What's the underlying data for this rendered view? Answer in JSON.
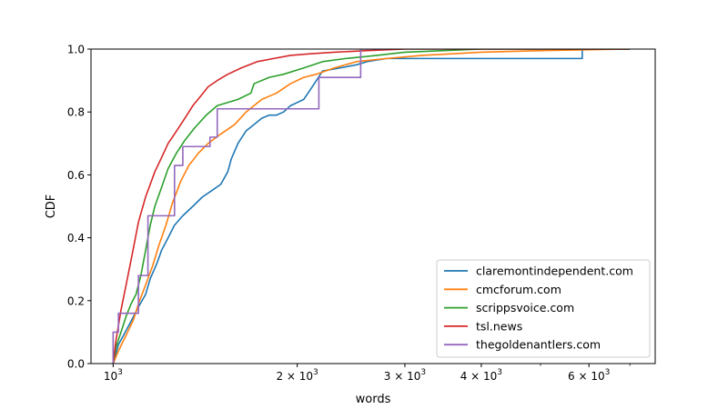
{
  "chart_data": {
    "type": "line",
    "subtype": "step-cdf",
    "xscale": "log",
    "xlabel": "words",
    "ylabel": "CDF",
    "xlim": [
      920,
      7700
    ],
    "ylim": [
      0.0,
      1.0
    ],
    "grid": false,
    "legend_position": "lower-right",
    "x_ticks": [
      {
        "value": 1000,
        "base": "10",
        "exp": "3"
      },
      {
        "value": 2000,
        "base": "2 × 10",
        "exp": "3"
      },
      {
        "value": 3000,
        "base": "3 × 10",
        "exp": "3"
      },
      {
        "value": 4000,
        "base": "4 × 10",
        "exp": "3"
      },
      {
        "value": 6000,
        "base": "6 × 10",
        "exp": "3"
      }
    ],
    "x_minor_ticks": [
      5000,
      7000
    ],
    "y_ticks": [
      "0.0",
      "0.2",
      "0.4",
      "0.6",
      "0.8",
      "1.0"
    ],
    "series": [
      {
        "name": "claremontindependent.com",
        "color": "#1f77b4",
        "points": [
          [
            1000,
            0.0
          ],
          [
            1010,
            0.03
          ],
          [
            1020,
            0.06
          ],
          [
            1040,
            0.09
          ],
          [
            1060,
            0.12
          ],
          [
            1080,
            0.15
          ],
          [
            1100,
            0.18
          ],
          [
            1130,
            0.22
          ],
          [
            1150,
            0.27
          ],
          [
            1180,
            0.32
          ],
          [
            1200,
            0.36
          ],
          [
            1230,
            0.4
          ],
          [
            1260,
            0.44
          ],
          [
            1300,
            0.47
          ],
          [
            1350,
            0.5
          ],
          [
            1400,
            0.53
          ],
          [
            1450,
            0.55
          ],
          [
            1500,
            0.57
          ],
          [
            1540,
            0.61
          ],
          [
            1560,
            0.65
          ],
          [
            1600,
            0.7
          ],
          [
            1650,
            0.74
          ],
          [
            1700,
            0.76
          ],
          [
            1750,
            0.78
          ],
          [
            1800,
            0.79
          ],
          [
            1850,
            0.79
          ],
          [
            1900,
            0.8
          ],
          [
            1950,
            0.82
          ],
          [
            2000,
            0.83
          ],
          [
            2050,
            0.84
          ],
          [
            2100,
            0.87
          ],
          [
            2150,
            0.9
          ],
          [
            2200,
            0.93
          ],
          [
            2350,
            0.94
          ],
          [
            2500,
            0.95
          ],
          [
            2600,
            0.96
          ],
          [
            2800,
            0.97
          ],
          [
            5850,
            0.97
          ],
          [
            5850,
            1.0
          ],
          [
            7000,
            1.0
          ]
        ]
      },
      {
        "name": "cmcforum.com",
        "color": "#ff7f0e",
        "points": [
          [
            1000,
            0.0
          ],
          [
            1020,
            0.04
          ],
          [
            1050,
            0.09
          ],
          [
            1080,
            0.14
          ],
          [
            1100,
            0.19
          ],
          [
            1130,
            0.25
          ],
          [
            1160,
            0.31
          ],
          [
            1190,
            0.38
          ],
          [
            1220,
            0.44
          ],
          [
            1250,
            0.51
          ],
          [
            1290,
            0.58
          ],
          [
            1330,
            0.63
          ],
          [
            1380,
            0.67
          ],
          [
            1430,
            0.7
          ],
          [
            1500,
            0.73
          ],
          [
            1580,
            0.76
          ],
          [
            1650,
            0.8
          ],
          [
            1750,
            0.84
          ],
          [
            1850,
            0.86
          ],
          [
            1950,
            0.89
          ],
          [
            2050,
            0.91
          ],
          [
            2150,
            0.92
          ],
          [
            2300,
            0.94
          ],
          [
            2500,
            0.96
          ],
          [
            2800,
            0.97
          ],
          [
            3200,
            0.98
          ],
          [
            4000,
            0.99
          ],
          [
            5000,
            0.995
          ],
          [
            6900,
            1.0
          ]
        ]
      },
      {
        "name": "scrippsvoice.com",
        "color": "#2ca02c",
        "points": [
          [
            1000,
            0.0
          ],
          [
            1010,
            0.05
          ],
          [
            1030,
            0.1
          ],
          [
            1050,
            0.15
          ],
          [
            1070,
            0.19
          ],
          [
            1090,
            0.22
          ],
          [
            1110,
            0.28
          ],
          [
            1130,
            0.36
          ],
          [
            1150,
            0.44
          ],
          [
            1170,
            0.5
          ],
          [
            1200,
            0.56
          ],
          [
            1230,
            0.62
          ],
          [
            1270,
            0.67
          ],
          [
            1310,
            0.71
          ],
          [
            1360,
            0.75
          ],
          [
            1420,
            0.79
          ],
          [
            1480,
            0.82
          ],
          [
            1600,
            0.84
          ],
          [
            1680,
            0.86
          ],
          [
            1700,
            0.89
          ],
          [
            1800,
            0.91
          ],
          [
            1900,
            0.92
          ],
          [
            2050,
            0.94
          ],
          [
            2200,
            0.96
          ],
          [
            2400,
            0.97
          ],
          [
            2700,
            0.98
          ],
          [
            3000,
            0.99
          ],
          [
            4000,
            1.0
          ],
          [
            7000,
            1.0
          ]
        ]
      },
      {
        "name": "tsl.news",
        "color": "#d62728",
        "points": [
          [
            1000,
            0.0
          ],
          [
            1010,
            0.07
          ],
          [
            1020,
            0.12
          ],
          [
            1030,
            0.17
          ],
          [
            1040,
            0.21
          ],
          [
            1050,
            0.25
          ],
          [
            1060,
            0.29
          ],
          [
            1070,
            0.33
          ],
          [
            1080,
            0.37
          ],
          [
            1090,
            0.41
          ],
          [
            1100,
            0.45
          ],
          [
            1115,
            0.49
          ],
          [
            1130,
            0.53
          ],
          [
            1150,
            0.57
          ],
          [
            1170,
            0.61
          ],
          [
            1190,
            0.64
          ],
          [
            1210,
            0.67
          ],
          [
            1230,
            0.7
          ],
          [
            1260,
            0.73
          ],
          [
            1290,
            0.76
          ],
          [
            1320,
            0.79
          ],
          [
            1350,
            0.82
          ],
          [
            1390,
            0.85
          ],
          [
            1430,
            0.88
          ],
          [
            1480,
            0.9
          ],
          [
            1540,
            0.92
          ],
          [
            1620,
            0.94
          ],
          [
            1720,
            0.96
          ],
          [
            1830,
            0.97
          ],
          [
            1950,
            0.98
          ],
          [
            2100,
            0.985
          ],
          [
            2300,
            0.99
          ],
          [
            2600,
            0.995
          ],
          [
            3000,
            1.0
          ],
          [
            7000,
            1.0
          ]
        ]
      },
      {
        "name": "thegoldenantlers.com",
        "color": "#9467bd",
        "points": [
          [
            1000,
            0.0
          ],
          [
            1000,
            0.1
          ],
          [
            1020,
            0.1
          ],
          [
            1020,
            0.16
          ],
          [
            1100,
            0.16
          ],
          [
            1100,
            0.28
          ],
          [
            1140,
            0.28
          ],
          [
            1140,
            0.47
          ],
          [
            1260,
            0.47
          ],
          [
            1260,
            0.63
          ],
          [
            1300,
            0.63
          ],
          [
            1300,
            0.69
          ],
          [
            1440,
            0.69
          ],
          [
            1440,
            0.72
          ],
          [
            1480,
            0.72
          ],
          [
            1480,
            0.81
          ],
          [
            2170,
            0.81
          ],
          [
            2170,
            0.91
          ],
          [
            2540,
            0.91
          ],
          [
            2540,
            1.0
          ],
          [
            2800,
            1.0
          ]
        ]
      }
    ]
  }
}
